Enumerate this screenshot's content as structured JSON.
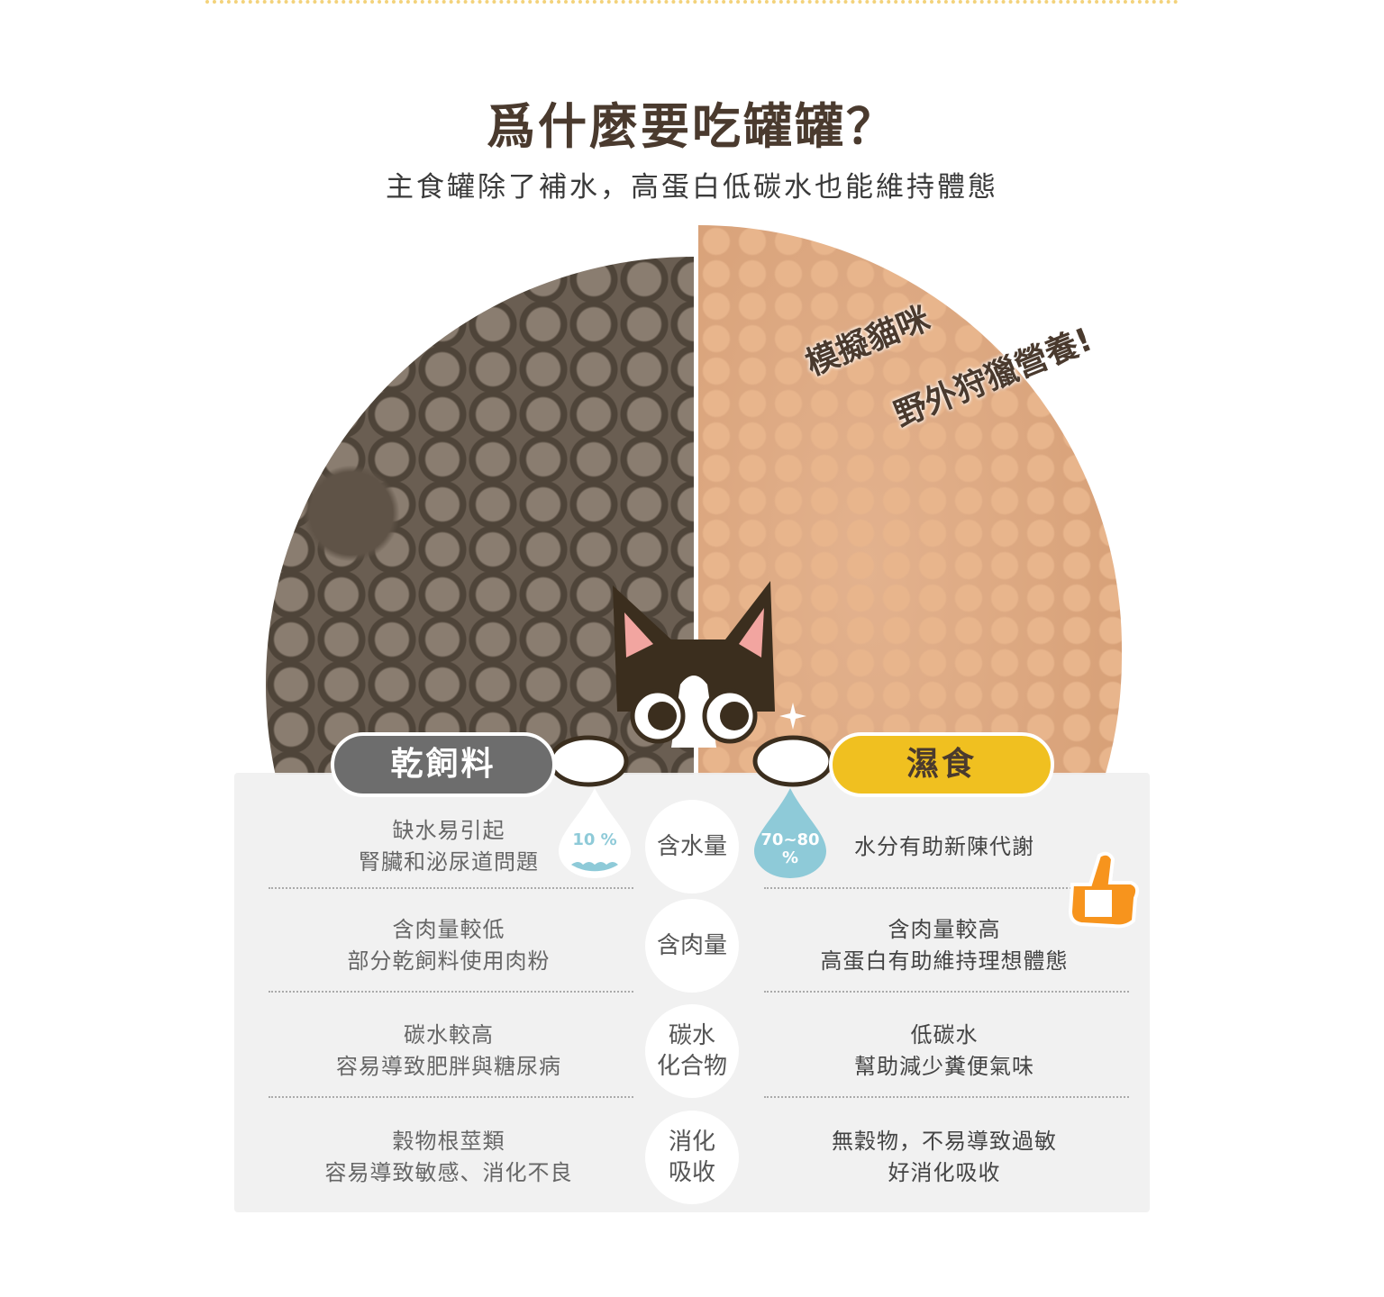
{
  "header": {
    "title": "爲什麼要吃罐罐？",
    "subtitle": "主食罐除了補水，高蛋白低碳水也能維持體態"
  },
  "slogan": {
    "line1": "模擬貓咪",
    "line2": "野外狩獵營養!"
  },
  "labels": {
    "dry": "乾飼料",
    "wet": "濕食"
  },
  "water": {
    "dry_percent": "10 %",
    "wet_percent_line1": "70~80",
    "wet_percent_line2": "%"
  },
  "rows": [
    {
      "dry": [
        "缺水易引起",
        "腎臟和泌尿道問題"
      ],
      "topic": [
        "含水量"
      ],
      "wet": [
        "水分有助新陳代謝"
      ]
    },
    {
      "dry": [
        "含肉量較低",
        "部分乾飼料使用肉粉"
      ],
      "topic": [
        "含肉量"
      ],
      "wet": [
        "含肉量較高",
        "高蛋白有助維持理想體態"
      ]
    },
    {
      "dry": [
        "碳水較高",
        "容易導致肥胖與糖尿病"
      ],
      "topic": [
        "碳水",
        "化合物"
      ],
      "wet": [
        "低碳水",
        "幫助減少糞便氣味"
      ]
    },
    {
      "dry": [
        "穀物根莖類",
        "容易導致敏感、消化不良"
      ],
      "topic": [
        "消化",
        "吸收"
      ],
      "wet": [
        "無穀物，不易導致過敏",
        "好消化吸收"
      ]
    }
  ],
  "colors": {
    "dry_label": "#6d6d6d",
    "wet_label": "#f0c020",
    "water_blue": "#8ecad8",
    "title": "#4a3a2e",
    "thumb": "#f7941d"
  },
  "icons": [
    "cat-mascot-icon",
    "water-drop-icon",
    "thumbs-up-icon",
    "sparkle-icon"
  ]
}
